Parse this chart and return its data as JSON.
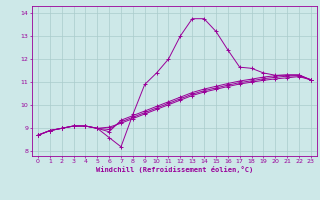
{
  "xlabel": "Windchill (Refroidissement éolien,°C)",
  "ylabel": "",
  "bg_color": "#cde8e8",
  "line_color": "#990099",
  "grid_color": "#aacccc",
  "axis_color": "#990099",
  "tick_color": "#990099",
  "ylim": [
    7.8,
    14.3
  ],
  "xlim": [
    -0.5,
    23.5
  ],
  "yticks": [
    8,
    9,
    10,
    11,
    12,
    13,
    14
  ],
  "xticks": [
    0,
    1,
    2,
    3,
    4,
    5,
    6,
    7,
    8,
    9,
    10,
    11,
    12,
    13,
    14,
    15,
    16,
    17,
    18,
    19,
    20,
    21,
    22,
    23
  ],
  "series": [
    [
      8.7,
      8.9,
      9.0,
      9.1,
      9.1,
      9.0,
      8.6,
      8.2,
      9.6,
      10.9,
      11.4,
      12.0,
      13.0,
      13.75,
      13.75,
      13.2,
      12.4,
      11.65,
      11.6,
      11.4,
      11.3,
      11.3,
      11.3,
      11.1
    ],
    [
      8.7,
      8.9,
      9.0,
      9.1,
      9.1,
      9.0,
      8.85,
      9.35,
      9.55,
      9.75,
      9.95,
      10.15,
      10.35,
      10.55,
      10.7,
      10.82,
      10.94,
      11.05,
      11.13,
      11.22,
      11.28,
      11.32,
      11.32,
      11.1
    ],
    [
      8.7,
      8.9,
      9.0,
      9.1,
      9.1,
      9.0,
      8.95,
      9.28,
      9.48,
      9.68,
      9.88,
      10.08,
      10.28,
      10.48,
      10.63,
      10.75,
      10.87,
      10.98,
      11.06,
      11.15,
      11.21,
      11.26,
      11.28,
      11.1
    ],
    [
      8.7,
      8.9,
      9.0,
      9.1,
      9.1,
      9.0,
      9.05,
      9.22,
      9.42,
      9.62,
      9.82,
      10.02,
      10.22,
      10.42,
      10.57,
      10.69,
      10.81,
      10.92,
      11.0,
      11.08,
      11.14,
      11.19,
      11.24,
      11.1
    ]
  ]
}
